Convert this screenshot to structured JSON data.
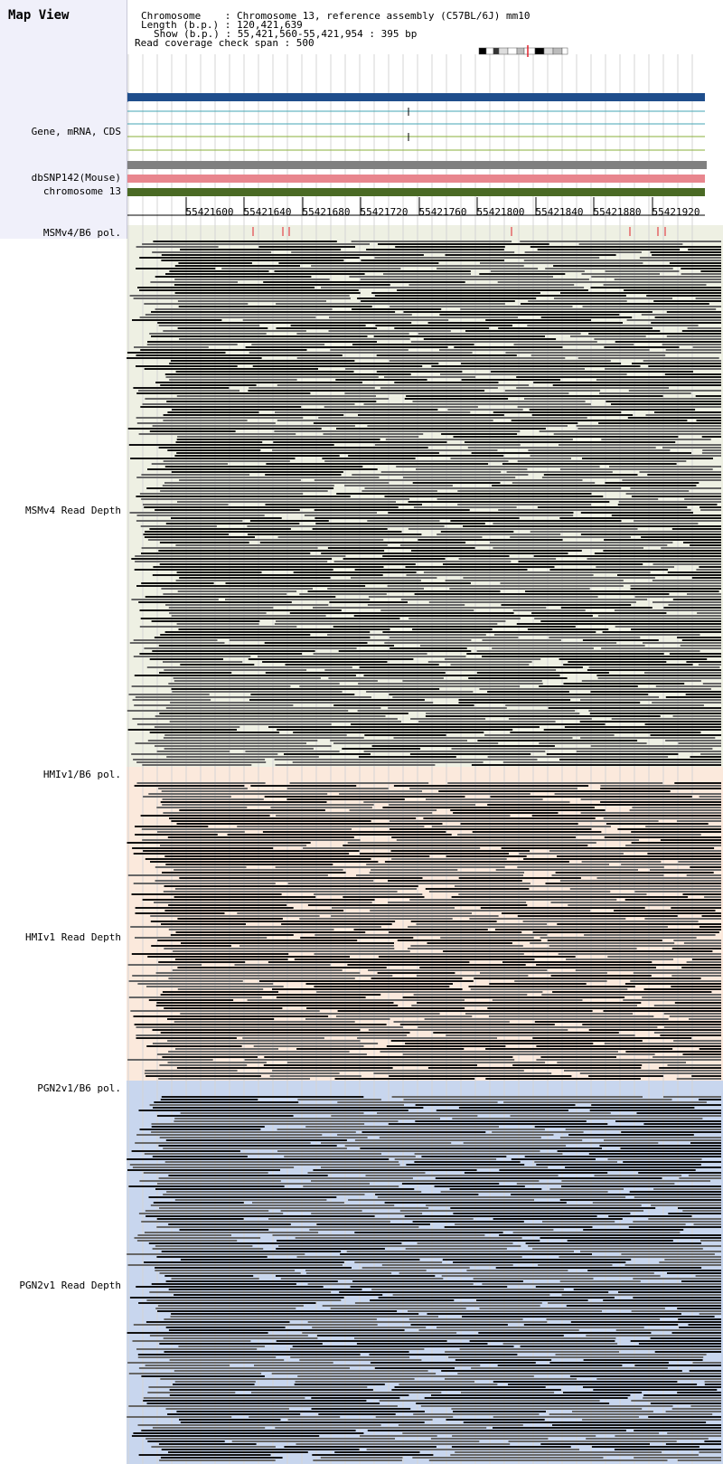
{
  "map_view": {
    "title": "Map View"
  },
  "info": {
    "chromosome_line": "Chromosome    : Chromosome 13, reference assembly (C57BL/6J) mm10",
    "length_line": "Length (b.p.) : 120,421,639",
    "show_line": "Show (b.p.) : 55,421,560-55,421,954 : 395 bp",
    "span_line": "Read coverage check span : 500"
  },
  "tracks": {
    "gene_label": "Gene, mRNA, CDS",
    "dbsnp_label": "dbSNP142(Mouse)",
    "chromosome_label": "chromosome 13"
  },
  "ruler": {
    "ticks": [
      "55421600",
      "55421640",
      "55421680",
      "55421720",
      "55421760",
      "55421800",
      "55421840",
      "55421880",
      "55421920"
    ]
  },
  "strains": [
    {
      "pol_label": "MSMv4/B6 pol.",
      "depth_label": "MSMv4 Read Depth",
      "bg": "#eef0e3"
    },
    {
      "pol_label": "HMIv1/B6 pol.",
      "depth_label": "HMIv1 Read Depth",
      "bg": "#fbe9dc"
    },
    {
      "pol_label": "PGN2v1/B6 pol.",
      "depth_label": "PGN2v1 Read Depth",
      "bg": "#c8d6ee"
    }
  ],
  "colors": {
    "gene_bar": "#1f4e8c",
    "transcript_line": "#43a6b4",
    "cds_line": "#8aaf3a",
    "gray_bar": "#808080",
    "dbsnp_bar": "#e8868e",
    "chromosome_bar": "#4a6a24",
    "snp_tick": "#e0202a",
    "read_dark": "#111111",
    "read_gray": "#666666"
  }
}
